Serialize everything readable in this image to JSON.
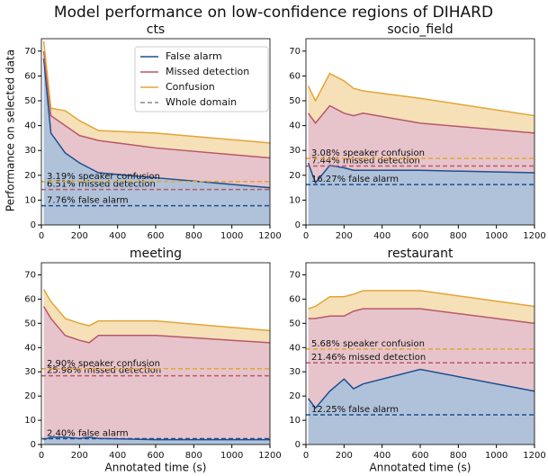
{
  "title": "Model performance on low-confidence regions of DIHARD",
  "y_label": "Performance on selected data",
  "x_label": "Annotated time (s)",
  "baseline_legend": "Whole domain",
  "chart_data": [
    {
      "type": "stacked-area",
      "title": "cts",
      "x": [
        12,
        50,
        125,
        200,
        250,
        300,
        600,
        1200
      ],
      "series": [
        {
          "name": "False alarm",
          "color": "#1c4f91",
          "values": [
            67,
            37,
            29,
            25,
            23,
            21,
            19,
            15
          ]
        },
        {
          "name": "Missed detection",
          "color": "#b9576a",
          "values": [
            3,
            7,
            11,
            11,
            12,
            13,
            12,
            12
          ]
        },
        {
          "name": "Confusion",
          "color": "#e3a535",
          "values": [
            4,
            3,
            6,
            6,
            5,
            4,
            6,
            6
          ]
        }
      ],
      "baselines": [
        {
          "value": 7.76,
          "label": "7.76% false alarm"
        },
        {
          "value": 6.51,
          "label": "6.51% missed detection"
        },
        {
          "value": 3.19,
          "label": "3.19% speaker confusion"
        }
      ],
      "xlim": [
        0,
        1200
      ],
      "xticks": [
        0,
        200,
        400,
        600,
        800,
        1000,
        1200
      ],
      "ylim": [
        0,
        75
      ],
      "yticks": [
        0,
        10,
        20,
        30,
        40,
        50,
        60,
        70
      ]
    },
    {
      "type": "stacked-area",
      "title": "socio_field",
      "x": [
        12,
        50,
        125,
        200,
        250,
        300,
        600,
        1200
      ],
      "series": [
        {
          "name": "False alarm",
          "color": "#1c4f91",
          "values": [
            25,
            17,
            24,
            23,
            22,
            22,
            22,
            21
          ]
        },
        {
          "name": "Missed detection",
          "color": "#b9576a",
          "values": [
            20,
            24,
            24,
            22,
            22,
            23,
            19,
            16
          ]
        },
        {
          "name": "Confusion",
          "color": "#e3a535",
          "values": [
            11,
            9,
            13,
            13,
            11,
            9,
            10,
            7
          ]
        }
      ],
      "baselines": [
        {
          "value": 16.27,
          "label": "16.27% false alarm"
        },
        {
          "value": 7.44,
          "label": "7.44% missed detection"
        },
        {
          "value": 3.08,
          "label": "3.08% speaker confusion"
        }
      ],
      "xlim": [
        0,
        1200
      ],
      "xticks": [
        0,
        200,
        400,
        600,
        800,
        1000,
        1200
      ],
      "ylim": [
        0,
        75
      ],
      "yticks": [
        0,
        10,
        20,
        30,
        40,
        50,
        60,
        70
      ]
    },
    {
      "type": "stacked-area",
      "title": "meeting",
      "x": [
        12,
        50,
        125,
        200,
        250,
        300,
        600,
        1200
      ],
      "series": [
        {
          "name": "False alarm",
          "color": "#1c4f91",
          "values": [
            2,
            3,
            3,
            2.5,
            3,
            2.5,
            2,
            2
          ]
        },
        {
          "name": "Missed detection",
          "color": "#b9576a",
          "values": [
            55,
            49,
            42,
            40.5,
            39,
            42.5,
            43,
            40
          ]
        },
        {
          "name": "Confusion",
          "color": "#e3a535",
          "values": [
            7,
            7,
            7,
            7,
            7,
            6,
            6,
            5
          ]
        }
      ],
      "baselines": [
        {
          "value": 2.4,
          "label": "2.40% false alarm"
        },
        {
          "value": 25.98,
          "label": "25.98% missed detection"
        },
        {
          "value": 2.9,
          "label": "2.90% speaker confusion"
        }
      ],
      "xlim": [
        0,
        1200
      ],
      "xticks": [
        0,
        200,
        400,
        600,
        800,
        1000,
        1200
      ],
      "ylim": [
        0,
        75
      ],
      "yticks": [
        0,
        10,
        20,
        30,
        40,
        50,
        60,
        70
      ]
    },
    {
      "type": "stacked-area",
      "title": "restaurant",
      "x": [
        12,
        50,
        125,
        200,
        250,
        300,
        600,
        1200
      ],
      "series": [
        {
          "name": "False alarm",
          "color": "#1c4f91",
          "values": [
            19,
            15,
            22,
            27,
            23,
            25,
            31,
            22
          ]
        },
        {
          "name": "Missed detection",
          "color": "#b9576a",
          "values": [
            33,
            37,
            31,
            26,
            32,
            31,
            25,
            28
          ]
        },
        {
          "name": "Confusion",
          "color": "#e3a535",
          "values": [
            4,
            5,
            8,
            8,
            7,
            7.5,
            7.5,
            7
          ]
        }
      ],
      "baselines": [
        {
          "value": 12.25,
          "label": "12.25% false alarm"
        },
        {
          "value": 21.46,
          "label": "21.46% missed detection"
        },
        {
          "value": 5.68,
          "label": "5.68% speaker confusion"
        }
      ],
      "xlim": [
        0,
        1200
      ],
      "xticks": [
        0,
        200,
        400,
        600,
        800,
        1000,
        1200
      ],
      "ylim": [
        0,
        75
      ],
      "yticks": [
        0,
        10,
        20,
        30,
        40,
        50,
        60,
        70
      ]
    }
  ]
}
